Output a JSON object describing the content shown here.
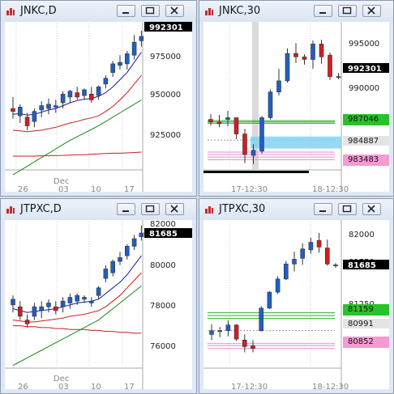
{
  "theme": {
    "bull": "#1f5fc5",
    "bear": "#d21e1e",
    "ma_fast": "#1b1b9a",
    "ma_mid": "#c8201e",
    "ma_slow": "#188518",
    "ma_long": "#c81e1e",
    "line_green": "#27b127",
    "line_pink": "#ee88cc",
    "line_red": "#dd3333",
    "zone": "#7ccff2",
    "tag_green": "#27c427",
    "tag_pink": "#f49bd4",
    "tag_gray": "#e4e4e4"
  },
  "windows": [
    {
      "title": "JNKC,D",
      "x_ticks": [
        "26",
        "03",
        "10",
        "17"
      ],
      "x_month": "Dec",
      "y_ticks": [
        "975000",
        "950000",
        "925000"
      ],
      "price_tag": "992301",
      "chart_data": {
        "type": "candlestick",
        "symbol": "JNKC",
        "interval": "D",
        "ylim": [
          903000,
          1004000
        ],
        "candles": [
          [
            945000,
            953000,
            938000,
            943000
          ],
          [
            940000,
            948000,
            935000,
            946000
          ],
          [
            939000,
            942000,
            930000,
            933000
          ],
          [
            936000,
            945000,
            932000,
            943000
          ],
          [
            944000,
            950000,
            939000,
            947000
          ],
          [
            945000,
            952000,
            941000,
            948000
          ],
          [
            946000,
            951000,
            942000,
            947000
          ],
          [
            949000,
            957000,
            945000,
            955000
          ],
          [
            953000,
            958000,
            949000,
            957000
          ],
          [
            956000,
            960000,
            951000,
            953000
          ],
          [
            954000,
            959000,
            951000,
            958000
          ],
          [
            955000,
            960000,
            949000,
            951000
          ],
          [
            954000,
            961000,
            951000,
            960000
          ],
          [
            962000,
            968000,
            959000,
            966000
          ],
          [
            970000,
            978000,
            967000,
            976000
          ],
          [
            975000,
            982000,
            972000,
            977000
          ],
          [
            976000,
            985000,
            972000,
            983000
          ],
          [
            982000,
            996000,
            979000,
            991000
          ],
          [
            992000,
            999000,
            988000,
            995000
          ]
        ],
        "ma_fast": [
          941000,
          941500,
          940500,
          941000,
          942500,
          944000,
          945000,
          947000,
          949000,
          950500,
          951500,
          952000,
          953500,
          956000,
          960000,
          965000,
          970000,
          977000,
          984000
        ],
        "ma_mid": [
          930000,
          929500,
          929000,
          929500,
          930000,
          931000,
          932000,
          933500,
          935000,
          936000,
          937500,
          938500,
          940000,
          943000,
          946500,
          951000,
          956000,
          962000,
          968000
        ],
        "ma_slow": [
          899000,
          902000,
          905000,
          908000,
          911000,
          914000,
          917000,
          920000,
          923000,
          925500,
          928000,
          930500,
          933000,
          936000,
          939000,
          942000,
          945000,
          948000,
          951000
        ],
        "ma_long": [
          912000,
          912000,
          912000,
          912000,
          912200,
          912300,
          912400,
          912500,
          912700,
          913000,
          913000,
          913300,
          913500,
          913800,
          914000,
          914000,
          914200,
          914500,
          914800
        ]
      }
    },
    {
      "title": "JNKC,30",
      "x_ticks": [
        "17-12:30",
        "18-12:30"
      ],
      "y_ticks": [
        "995000",
        "990000"
      ],
      "price_tag": "992301",
      "levels": [
        {
          "label": "987046",
          "kind": "green"
        },
        {
          "label": "984887",
          "kind": "gray"
        },
        {
          "label": "983483",
          "kind": "pink"
        }
      ],
      "chart_data": {
        "type": "candlestick",
        "symbol": "JNKC",
        "interval": "30",
        "ylim": [
          981500,
          998500
        ],
        "candles": [
          [
            987300,
            987900,
            986600,
            987000
          ],
          [
            987000,
            987800,
            986400,
            986800
          ],
          [
            987300,
            988300,
            986500,
            987500
          ],
          [
            987500,
            987500,
            985000,
            985600
          ],
          [
            985600,
            986200,
            982200,
            983200
          ],
          [
            983100,
            984400,
            982100,
            983700
          ],
          [
            983600,
            987700,
            983300,
            987500
          ],
          [
            987500,
            990800,
            987300,
            990500
          ],
          [
            990500,
            993200,
            990100,
            991800
          ],
          [
            991800,
            995600,
            991600,
            995000
          ],
          [
            995000,
            996200,
            993900,
            994600
          ],
          [
            994600,
            994900,
            993700,
            994300
          ],
          [
            994300,
            996500,
            993200,
            996100
          ],
          [
            996100,
            996600,
            993800,
            994600
          ],
          [
            994800,
            995100,
            991900,
            992300
          ],
          [
            992300,
            992700,
            992000,
            992300
          ]
        ],
        "levels": [
          987150,
          987000,
          986850,
          984887,
          983483,
          983200,
          982900,
          982600
        ]
      }
    },
    {
      "title": "JTPXC,D",
      "x_ticks": [
        "26",
        "03",
        "10",
        "17"
      ],
      "x_month": "Dec",
      "y_ticks": [
        "80000",
        "78000",
        "76000"
      ],
      "price_tag": "81685",
      "y_top_tag": "82000",
      "chart_data": {
        "type": "candlestick",
        "symbol": "JTPXC",
        "interval": "D",
        "ylim": [
          74800,
          82500
        ],
        "candles": [
          [
            78100,
            78600,
            77700,
            78400
          ],
          [
            78000,
            78300,
            77300,
            77500
          ],
          [
            77300,
            77600,
            76900,
            77100
          ],
          [
            77500,
            78200,
            77300,
            78000
          ],
          [
            77800,
            78300,
            77400,
            78000
          ],
          [
            78000,
            78400,
            77700,
            78200
          ],
          [
            78000,
            78300,
            77600,
            77800
          ],
          [
            78000,
            78500,
            77700,
            78300
          ],
          [
            78200,
            78700,
            77900,
            78500
          ],
          [
            78300,
            78700,
            78100,
            78600
          ],
          [
            78400,
            78600,
            78200,
            78500
          ],
          [
            78200,
            78500,
            78000,
            78300
          ],
          [
            78600,
            79100,
            78400,
            79000
          ],
          [
            79500,
            80200,
            79300,
            80000
          ],
          [
            79800,
            80500,
            79600,
            80400
          ],
          [
            80400,
            80900,
            80200,
            80600
          ],
          [
            80700,
            81300,
            80500,
            81200
          ],
          [
            81200,
            81800,
            81000,
            81600
          ],
          [
            81700,
            82300,
            81500,
            81900
          ]
        ],
        "ma_fast": [
          77900,
          77800,
          77700,
          77750,
          77800,
          77850,
          77900,
          78000,
          78100,
          78200,
          78250,
          78300,
          78400,
          78700,
          79000,
          79300,
          79700,
          80200,
          80700
        ],
        "ma_mid": [
          77300,
          77250,
          77200,
          77200,
          77250,
          77300,
          77350,
          77400,
          77500,
          77550,
          77600,
          77700,
          77800,
          78000,
          78300,
          78600,
          79000,
          79400,
          79800
        ],
        "ma_slow": [
          74900,
          75100,
          75300,
          75500,
          75700,
          75900,
          76100,
          76300,
          76500,
          76700,
          76900,
          77100,
          77300,
          77600,
          77900,
          78200,
          78500,
          78800,
          79100
        ],
        "ma_long": [
          77000,
          77000,
          76950,
          76950,
          76900,
          76900,
          76850,
          76850,
          76800,
          76800,
          76800,
          76750,
          76750,
          76700,
          76700,
          76650,
          76650,
          76600,
          76600
        ]
      }
    },
    {
      "title": "JTPXC,30",
      "x_ticks": [
        "17-12:30",
        "18-12:30"
      ],
      "y_ticks": [
        "82000",
        "81750",
        "81250",
        "80750"
      ],
      "price_tag": "81685",
      "levels": [
        {
          "label": "81159",
          "kind": "green"
        },
        {
          "label": "80991",
          "kind": "gray"
        },
        {
          "label": "80852",
          "kind": "pink"
        }
      ],
      "chart_data": {
        "type": "candlestick",
        "symbol": "JTPXC",
        "interval": "30",
        "ylim": [
          80600,
          82150
        ],
        "candles": [
          [
            80950,
            81060,
            80890,
            80990
          ],
          [
            80980,
            81030,
            80920,
            80990
          ],
          [
            80990,
            81100,
            80930,
            81050
          ],
          [
            81050,
            81060,
            80880,
            80900
          ],
          [
            80890,
            80950,
            80760,
            80820
          ],
          [
            80830,
            80890,
            80760,
            80800
          ],
          [
            80990,
            81250,
            80980,
            81230
          ],
          [
            81230,
            81410,
            81220,
            81400
          ],
          [
            81400,
            81570,
            81380,
            81540
          ],
          [
            81540,
            81730,
            81530,
            81700
          ],
          [
            81700,
            81830,
            81620,
            81750
          ],
          [
            81760,
            81920,
            81690,
            81860
          ],
          [
            81850,
            81980,
            81810,
            81930
          ],
          [
            81950,
            82030,
            81820,
            81880
          ],
          [
            81870,
            81960,
            81680,
            81700
          ],
          [
            81690,
            81710,
            81660,
            81690
          ]
        ],
        "levels": [
          81180,
          81150,
          81120,
          80991,
          80852,
          80830,
          80800
        ]
      }
    }
  ]
}
